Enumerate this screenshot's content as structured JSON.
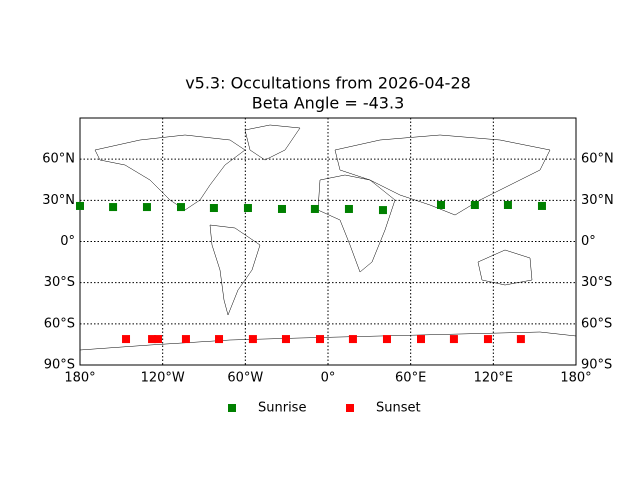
{
  "chart_data": {
    "type": "scatter",
    "title": "v5.3: Occultations from 2026-04-28",
    "subtitle": "Beta Angle = -43.3",
    "xlim": [
      -180,
      180
    ],
    "ylim": [
      -90,
      90
    ],
    "xticks": [
      {
        "value": -180,
        "label": "180°"
      },
      {
        "value": -120,
        "label": "120°W"
      },
      {
        "value": -60,
        "label": "60°W"
      },
      {
        "value": 0,
        "label": "0°"
      },
      {
        "value": 60,
        "label": "60°E"
      },
      {
        "value": 120,
        "label": "120°E"
      },
      {
        "value": 180,
        "label": "180°"
      }
    ],
    "yticks": [
      {
        "value": -90,
        "label": "90°S"
      },
      {
        "value": -60,
        "label": "60°S"
      },
      {
        "value": -30,
        "label": "30°S"
      },
      {
        "value": 0,
        "label": "0°"
      },
      {
        "value": 30,
        "label": "30°N"
      },
      {
        "value": 60,
        "label": "60°N"
      }
    ],
    "grid": true,
    "legend": "bottom",
    "series": [
      {
        "name": "Sunrise",
        "color": "#008000",
        "x": [
          -180,
          -156,
          -131.4,
          -106.7,
          -82.8,
          -58.1,
          -33.4,
          -9.5,
          15.2,
          39.9,
          82,
          106.6,
          130.6,
          155.3
        ],
        "values": [
          25.9,
          25.1,
          25.1,
          25.1,
          24.4,
          24.4,
          23.7,
          23.7,
          23.7,
          22.9,
          26.6,
          26.6,
          26.6,
          25.9
        ]
      },
      {
        "name": "Sunset",
        "color": "#ff0000",
        "x": [
          -146.6,
          -127.7,
          -123.4,
          -103.1,
          -79.1,
          -54.5,
          -30.5,
          -5.8,
          18.1,
          42.8,
          67.5,
          91.4,
          116.1,
          140
        ],
        "values": [
          -71.1,
          -71.1,
          -71.1,
          -71.1,
          -71.1,
          -71.1,
          -71.1,
          -71.1,
          -71.1,
          -71.1,
          -71.1,
          -71.1,
          -71.1,
          -71.1
        ]
      }
    ]
  }
}
